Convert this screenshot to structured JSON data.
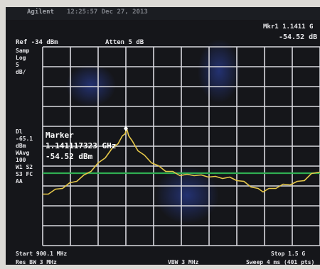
{
  "header": {
    "brand": "Agilent",
    "datetime": "12:25:57  Dec 27, 2013",
    "ref_level": "Ref -34 dBm",
    "attenuation": "Atten 5 dB",
    "marker_label": "Mkr1  1.1411 G",
    "marker_amplitude": "-54.52 dB"
  },
  "left_annotations": {
    "samp": "Samp",
    "log": "Log",
    "scale_value": "5",
    "scale_unit": "dB/",
    "dl_label": "Dl",
    "dl_value": "-65.1",
    "dl_unit": "dBm",
    "wavg": "WAvg",
    "avg_count": "100",
    "w1s2": "W1  S2",
    "s3fc": "S3  FC",
    "aa": "AA"
  },
  "marker_readout": {
    "title": "Marker",
    "frequency": "1.141117323 GHz",
    "amplitude": "-54.52 dBm"
  },
  "footer": {
    "start": "Start 900.1 MHz",
    "res_bw": "Res BW 3 MHz",
    "vbw": "VBW 3 MHz",
    "stop": "Stop 1.5 G",
    "sweep": "Sweep 4 ms (401 pts)"
  },
  "colors": {
    "trace": "#e6c84a",
    "display_line": "#2fae52",
    "grid": "#d8d8de",
    "background": "#15161a",
    "marker_glyph": "#ffffff"
  },
  "icons": {
    "marker": "marker-diamond-icon"
  }
}
